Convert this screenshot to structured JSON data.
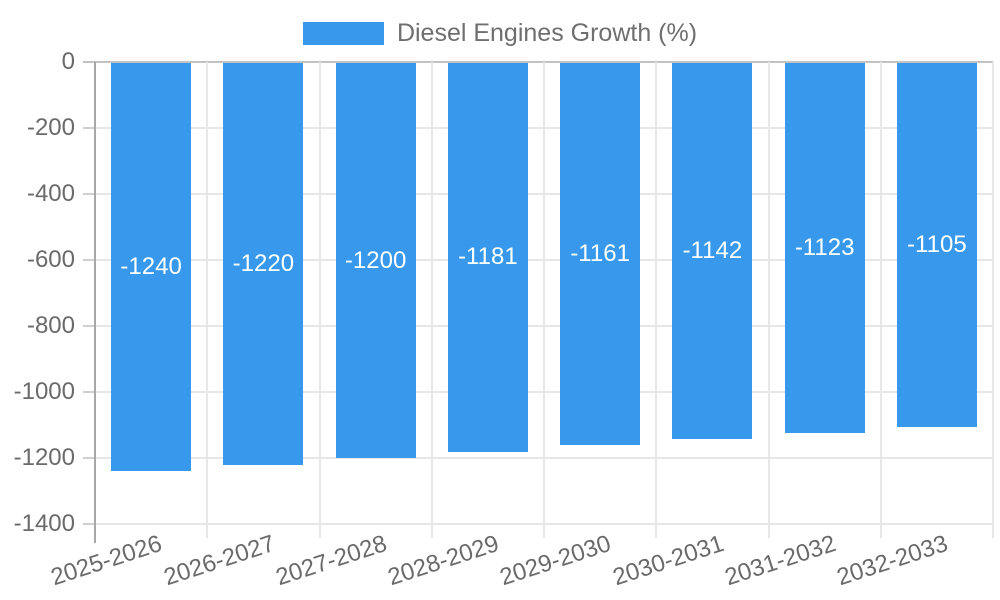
{
  "chart_data": {
    "type": "bar",
    "title": "Diesel Engines Growth (%)",
    "legend_position": "top",
    "categories": [
      "2025-2026",
      "2026-2027",
      "2027-2028",
      "2028-2029",
      "2029-2030",
      "2030-2031",
      "2031-2032",
      "2032-2033"
    ],
    "series": [
      {
        "name": "Diesel Engines Growth (%)",
        "values": [
          -1240,
          -1220,
          -1200,
          -1181,
          -1161,
          -1142,
          -1123,
          -1105
        ]
      }
    ],
    "data_labels": [
      "-1240",
      "-1220",
      "-1200",
      "-1181",
      "-1161",
      "-1142",
      "-1123",
      "-1105"
    ],
    "data_label_placement": "inside-center",
    "xlabel": "",
    "ylabel": "",
    "ylim": [
      -1400,
      0
    ],
    "yticks": [
      0,
      -200,
      -400,
      -600,
      -800,
      -1000,
      -1200,
      -1400
    ],
    "grid": true,
    "x_tick_rotation_deg": -18,
    "colors": {
      "bar_fill": "#3899EC",
      "bar_value_text": "#FFFFFF",
      "grid_line": "#E7E7E7",
      "tick_mark": "#CFCFCF",
      "zero_line": "#C2C2C2",
      "axis_line": "#A8A8A8",
      "axis_text": "#6A6A6A",
      "legend_text": "#6F6F6F",
      "background": "#FFFFFF"
    }
  }
}
